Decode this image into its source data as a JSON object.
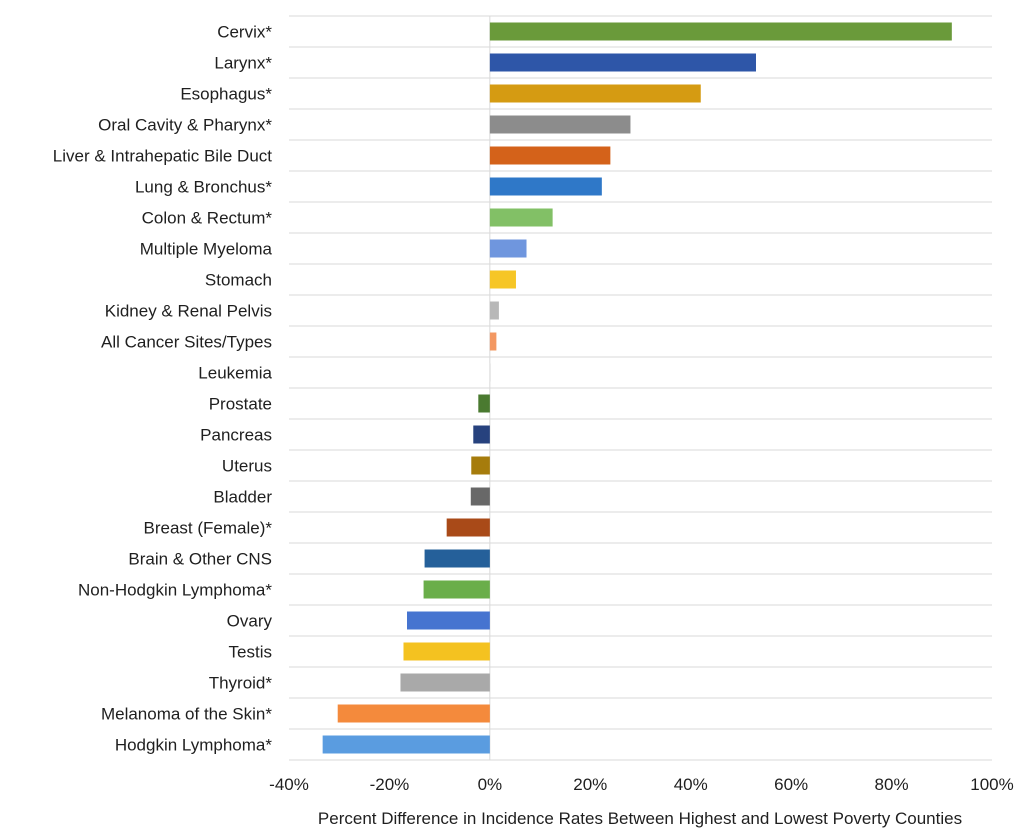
{
  "chart_data": {
    "type": "bar",
    "orientation": "horizontal",
    "title": "",
    "xlabel": "Percent Difference in Incidence Rates Between Highest and Lowest Poverty Counties",
    "ylabel": "",
    "xlim": [
      -40,
      100
    ],
    "x_ticks": [
      "-40%",
      "-20%",
      "0%",
      "20%",
      "40%",
      "60%",
      "80%",
      "100%"
    ],
    "x_tick_values": [
      -40,
      -20,
      0,
      20,
      40,
      60,
      80,
      100
    ],
    "grid": "horizontal",
    "legend": "none",
    "categories": [
      "Cervix*",
      "Larynx*",
      "Esophagus*",
      "Oral Cavity & Pharynx*",
      "Liver & Intrahepatic Bile Duct",
      "Lung & Bronchus*",
      "Colon & Rectum*",
      "Multiple Myeloma",
      "Stomach",
      "Kidney & Renal Pelvis",
      "All Cancer Sites/Types",
      "Leukemia",
      "Prostate",
      "Pancreas",
      "Uterus",
      "Bladder",
      "Breast (Female)*",
      "Brain & Other CNS",
      "Non-Hodgkin Lymphoma*",
      "Ovary",
      "Testis",
      "Thyroid*",
      "Melanoma of the Skin*",
      "Hodgkin Lymphoma*"
    ],
    "values": [
      92,
      53,
      42,
      28,
      24,
      22.3,
      12.5,
      7.3,
      5.2,
      1.8,
      1.3,
      0.2,
      -2.3,
      -3.3,
      -3.7,
      -3.8,
      -8.6,
      -13,
      -13.2,
      -16.5,
      -17.2,
      -17.8,
      -30.3,
      -33.3
    ],
    "colors": [
      "#6a9a3a",
      "#2e56a8",
      "#d59b12",
      "#8c8c8c",
      "#d4621a",
      "#2f78c8",
      "#82c066",
      "#6f96de",
      "#f6c626",
      "#b8b8b8",
      "#f39862",
      "#e6e6e6",
      "#4a7a30",
      "#27427e",
      "#a67c0c",
      "#686868",
      "#a94a18",
      "#25609a",
      "#6aae4a",
      "#4674d0",
      "#f4c220",
      "#a9a9a9",
      "#f48a3c",
      "#5a9ce0"
    ]
  }
}
